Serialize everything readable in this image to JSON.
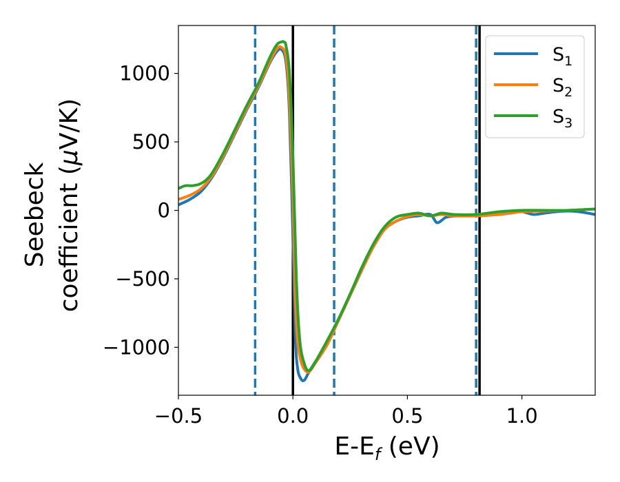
{
  "chart_data": {
    "type": "line",
    "xlabel": {
      "main": "E-E",
      "sub": "f",
      "unit": " (eV)"
    },
    "ylabel": {
      "line1": "Seebeck",
      "line2_main": "coefficient  (",
      "line2_mu": "μ",
      "line2_tail": "V/K)"
    },
    "xlim": [
      -0.5,
      1.32
    ],
    "ylim": [
      -1350,
      1350
    ],
    "xticks": [
      {
        "value": -0.5,
        "label": "−0.5"
      },
      {
        "value": 0.0,
        "label": "0.0"
      },
      {
        "value": 0.5,
        "label": "0.5"
      },
      {
        "value": 1.0,
        "label": "1.0"
      }
    ],
    "yticks": [
      {
        "value": 1000,
        "label": "1000"
      },
      {
        "value": 500,
        "label": "500"
      },
      {
        "value": 0,
        "label": "0"
      },
      {
        "value": -500,
        "label": "−500"
      },
      {
        "value": -1000,
        "label": "−1000"
      }
    ],
    "grid": false,
    "legend_position": "top-right",
    "vlines_solid": [
      0.0,
      0.815
    ],
    "vlines_dashed": [
      -0.165,
      0.18,
      0.8
    ],
    "series": [
      {
        "name": "S",
        "sub": "1",
        "color": "#1f77b4",
        "x": [
          -0.5,
          -0.45,
          -0.4,
          -0.35,
          -0.3,
          -0.25,
          -0.2,
          -0.15,
          -0.1,
          -0.07,
          -0.05,
          -0.03,
          -0.015,
          0.0,
          0.01,
          0.02,
          0.035,
          0.05,
          0.07,
          0.1,
          0.15,
          0.2,
          0.25,
          0.3,
          0.35,
          0.4,
          0.45,
          0.5,
          0.55,
          0.6,
          0.63,
          0.67,
          0.72,
          0.8,
          0.9,
          0.95,
          1.0,
          1.05,
          1.1,
          1.15,
          1.2,
          1.25,
          1.32
        ],
        "y": [
          40,
          80,
          140,
          250,
          400,
          570,
          740,
          900,
          1080,
          1160,
          1175,
          1080,
          700,
          -200,
          -900,
          -1150,
          -1230,
          -1240,
          -1180,
          -1100,
          -970,
          -800,
          -620,
          -440,
          -270,
          -140,
          -80,
          -50,
          -40,
          -30,
          -90,
          -50,
          -40,
          -40,
          -30,
          -20,
          -10,
          -30,
          -20,
          -10,
          -5,
          -10,
          -30
        ]
      },
      {
        "name": "S",
        "sub": "2",
        "color": "#ff7f0e",
        "x": [
          -0.5,
          -0.45,
          -0.4,
          -0.35,
          -0.3,
          -0.25,
          -0.2,
          -0.15,
          -0.1,
          -0.07,
          -0.05,
          -0.03,
          -0.015,
          0.0,
          0.01,
          0.02,
          0.035,
          0.05,
          0.07,
          0.1,
          0.15,
          0.2,
          0.25,
          0.3,
          0.35,
          0.4,
          0.45,
          0.5,
          0.55,
          0.6,
          0.65,
          0.7,
          0.8,
          0.9,
          1.0,
          1.1,
          1.2,
          1.32
        ],
        "y": [
          80,
          110,
          160,
          260,
          410,
          580,
          750,
          910,
          1090,
          1180,
          1190,
          1120,
          800,
          100,
          -600,
          -950,
          -1100,
          -1160,
          -1180,
          -1110,
          -980,
          -800,
          -620,
          -440,
          -270,
          -140,
          -80,
          -45,
          -30,
          -40,
          -30,
          -40,
          -40,
          -30,
          -10,
          -5,
          0,
          10
        ]
      },
      {
        "name": "S",
        "sub": "3",
        "color": "#2ca02c",
        "x": [
          -0.5,
          -0.47,
          -0.44,
          -0.41,
          -0.38,
          -0.35,
          -0.3,
          -0.25,
          -0.2,
          -0.15,
          -0.1,
          -0.07,
          -0.05,
          -0.04,
          -0.03,
          -0.015,
          0.0,
          0.015,
          0.03,
          0.05,
          0.07,
          0.1,
          0.15,
          0.2,
          0.25,
          0.3,
          0.35,
          0.4,
          0.45,
          0.5,
          0.55,
          0.6,
          0.65,
          0.7,
          0.8,
          0.9,
          1.0,
          1.1,
          1.2,
          1.32
        ],
        "y": [
          160,
          180,
          180,
          190,
          220,
          280,
          430,
          600,
          770,
          930,
          1120,
          1210,
          1230,
          1230,
          1200,
          1000,
          400,
          -500,
          -950,
          -1120,
          -1170,
          -1100,
          -950,
          -790,
          -610,
          -420,
          -250,
          -120,
          -50,
          -30,
          -20,
          -40,
          -20,
          -30,
          -30,
          -10,
          0,
          0,
          0,
          10
        ]
      }
    ]
  }
}
